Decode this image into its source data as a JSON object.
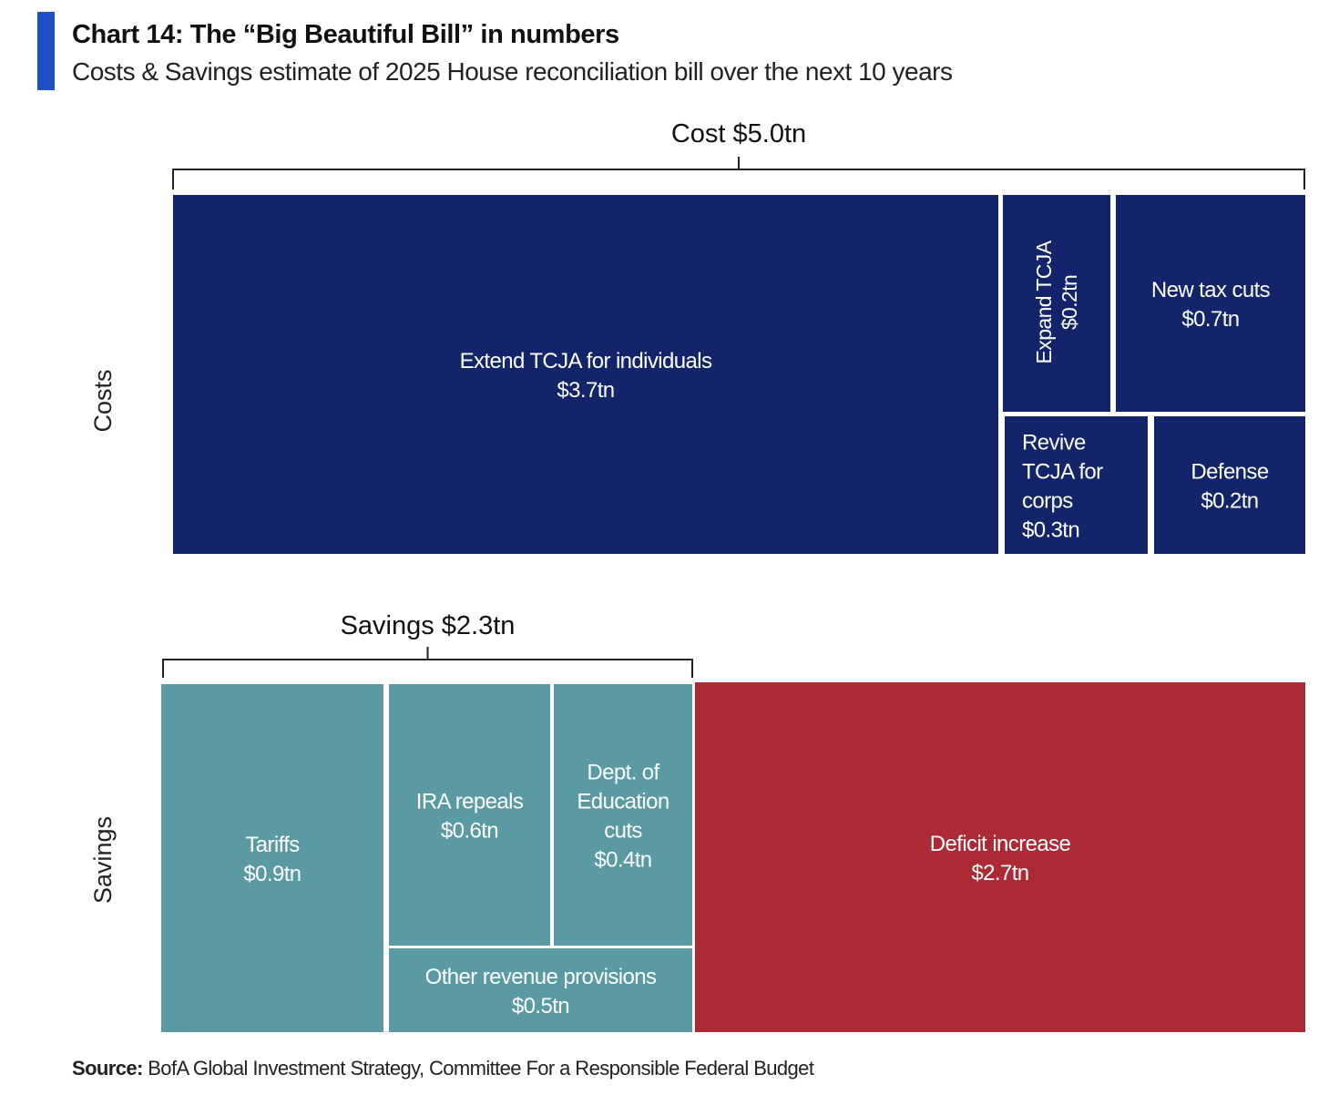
{
  "header": {
    "title": "Chart 14: The “Big Beautiful Bill” in numbers",
    "subtitle": "Costs & Savings estimate of 2025 House reconciliation bill over the next 10 years"
  },
  "source": {
    "label": "Source:",
    "text": "BofA Global Investment Strategy, Committee For a Responsible Federal Budget"
  },
  "chart_data": {
    "type": "treemap",
    "units": "$tn",
    "colors": {
      "costs": "#14246b",
      "savings": "#5a9aa3",
      "deficit": "#ab2a35"
    },
    "groups": [
      {
        "id": "costs",
        "axis_label": "Costs",
        "bracket_label": "Cost $5.0tn",
        "total": 5.0,
        "items": [
          {
            "label": "Extend TCJA for individuals",
            "value_label": "$3.7tn",
            "value": 3.7
          },
          {
            "label": "Expand TCJA",
            "value_label": "$0.2tn",
            "value": 0.2
          },
          {
            "label": "New tax cuts",
            "value_label": "$0.7tn",
            "value": 0.7
          },
          {
            "label": "Revive TCJA for corps",
            "value_label": "$0.3tn",
            "value": 0.3
          },
          {
            "label": "Defense",
            "value_label": "$0.2tn",
            "value": 0.2
          }
        ]
      },
      {
        "id": "savings",
        "axis_label": "Savings",
        "bracket_label": "Savings $2.3tn",
        "total": 2.3,
        "items": [
          {
            "label": "Tariffs",
            "value_label": "$0.9tn",
            "value": 0.9
          },
          {
            "label": "IRA repeals",
            "value_label": "$0.6tn",
            "value": 0.6
          },
          {
            "label": "Dept. of Education cuts",
            "value_label": "$0.4tn",
            "value": 0.4
          },
          {
            "label": "Other revenue provisions",
            "value_label": "$0.5tn",
            "value": 0.5
          },
          {
            "label": "Deficit increase",
            "value_label": "$2.7tn",
            "value": 2.7
          }
        ]
      }
    ]
  }
}
